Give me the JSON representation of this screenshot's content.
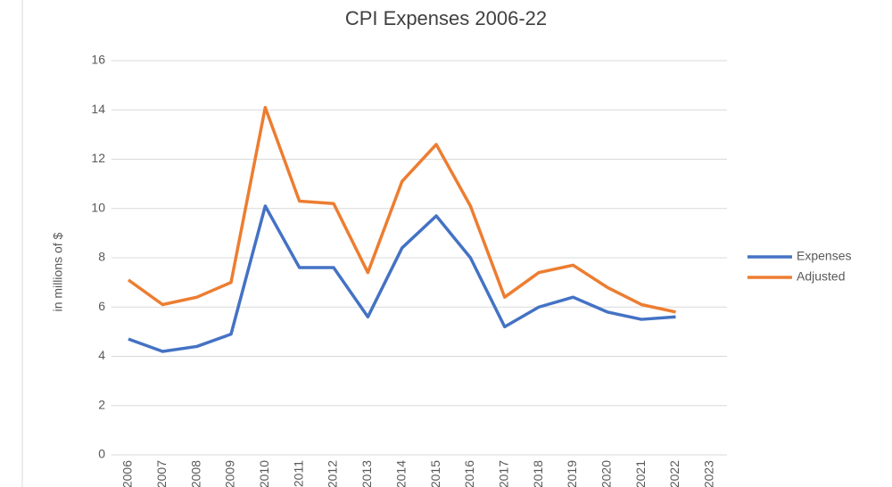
{
  "chart_data": {
    "type": "line",
    "title": "CPI Expenses 2006-22",
    "y_label": "in millions of $",
    "categories": [
      "2006",
      "2007",
      "2008",
      "2009",
      "2010",
      "2011",
      "2012",
      "2013",
      "2014",
      "2015",
      "2016",
      "2017",
      "2018",
      "2019",
      "2020",
      "2021",
      "2022",
      "2023"
    ],
    "series": [
      {
        "name": "Expenses",
        "color": "#4472c4",
        "values": [
          4.7,
          4.2,
          4.4,
          4.9,
          10.1,
          7.6,
          7.6,
          5.6,
          8.4,
          9.7,
          8.0,
          5.2,
          6.0,
          6.4,
          5.8,
          5.5,
          5.6,
          null
        ]
      },
      {
        "name": "Adjusted",
        "color": "#ed7d31",
        "values": [
          7.1,
          6.1,
          6.4,
          7.0,
          14.1,
          10.3,
          10.2,
          7.4,
          11.1,
          12.6,
          10.1,
          6.4,
          7.4,
          7.7,
          6.8,
          6.1,
          5.8,
          null
        ]
      }
    ],
    "ylim": [
      0,
      16
    ],
    "yticks": [
      0,
      2,
      4,
      6,
      8,
      10,
      12,
      14,
      16
    ],
    "grid": true,
    "legend": "right"
  }
}
